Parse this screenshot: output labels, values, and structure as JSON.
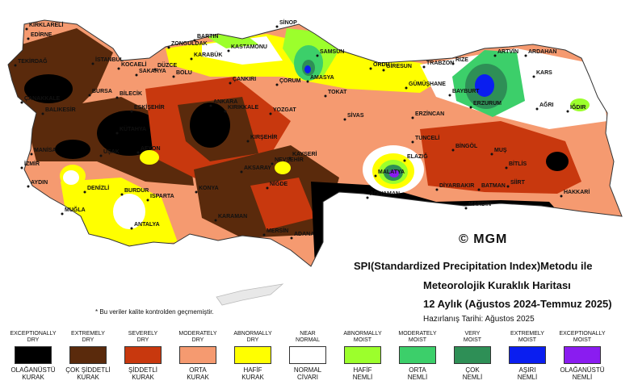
{
  "title": {
    "line1": "SPI(Standardized Precipitation Index)Metodu ile",
    "line2": "Meteorolojik Kuraklık Haritası",
    "line3": "12 Aylık (Ağustos 2024-Temmuz 2025)"
  },
  "prepared_date": "Hazırlanış Tarihi: Ağustos 2025",
  "copyright": "© MGM",
  "quality_note": "* Bu veriler kalite kontrolden geçmemiştir.",
  "legend": [
    {
      "en1": "EXCEPTIONALLY",
      "en2": "DRY",
      "tr1": "OLAĞANÜSTÜ",
      "tr2": "KURAK",
      "color": "#000000"
    },
    {
      "en1": "EXTREMELY",
      "en2": "DRY",
      "tr1": "ÇOK ŞİDDETLİ",
      "tr2": "KURAK",
      "color": "#5a2a0c"
    },
    {
      "en1": "SEVERELY",
      "en2": "DRY",
      "tr1": "ŞİDDETLİ",
      "tr2": "KURAK",
      "color": "#c8380e"
    },
    {
      "en1": "MODERATELY",
      "en2": "DRY",
      "tr1": "ORTA",
      "tr2": "KURAK",
      "color": "#f59a70"
    },
    {
      "en1": "ABNORMALLY",
      "en2": "DRY",
      "tr1": "HAFİF",
      "tr2": "KURAK",
      "color": "#ffff00"
    },
    {
      "en1": "NEAR",
      "en2": "NORMAL",
      "tr1": "NORMAL",
      "tr2": "CİVARI",
      "color": "#ffffff"
    },
    {
      "en1": "ABNORMALLY",
      "en2": "MOIST",
      "tr1": "HAFİF",
      "tr2": "NEMLİ",
      "color": "#9cff2c"
    },
    {
      "en1": "MODERATELY",
      "en2": "MOIST",
      "tr1": "ORTA",
      "tr2": "NEMLİ",
      "color": "#3ccf6a"
    },
    {
      "en1": "VERY",
      "en2": "MOIST",
      "tr1": "ÇOK",
      "tr2": "NEMLİ",
      "color": "#2e8f56"
    },
    {
      "en1": "EXTREMELY",
      "en2": "MOIST",
      "tr1": "AŞIRI",
      "tr2": "NEMLİ",
      "color": "#0a1ef0"
    },
    {
      "en1": "EXCEPTIONALLY",
      "en2": "MOIST",
      "tr1": "OLAĞANÜSTÜ",
      "tr2": "NEMLİ",
      "color": "#8a1cf0"
    }
  ],
  "cities": [
    "KIRKLARELİ",
    "EDİRNE",
    "TEKİRDAĞ",
    "İSTANBUL",
    "KOCAELİ",
    "SAKARYA",
    "DÜZCE",
    "BOLU",
    "ZONGULDAK",
    "BARTIN",
    "KARABÜK",
    "KASTAMONU",
    "SİNOP",
    "SAMSUN",
    "AMASYA",
    "ORDU",
    "GİRESUN",
    "TRABZON",
    "RİZE",
    "ARTVİN",
    "ARDAHAN",
    "KARS",
    "IĞDIR",
    "AĞRI",
    "ERZURUM",
    "BAYBURT",
    "GÜMÜŞHANE",
    "ERZİNCAN",
    "TOKAT",
    "SİVAS",
    "YOZGAT",
    "ÇORUM",
    "ÇANKIRI",
    "KIRIKKALE",
    "ANKARA",
    "KIRŞEHİR",
    "NEVŞEHİR",
    "KAYSERİ",
    "AKSARAY",
    "NİĞDE",
    "KONYA",
    "KARAMAN",
    "MERSİN",
    "ADANA",
    "BURSA",
    "BİLECİK",
    "ESKİŞEHİR",
    "BALIKESİR",
    "ÇANAKKALE",
    "KÜTAHYA",
    "UŞAK",
    "AFYON",
    "MANİSA",
    "İZMİR",
    "AYDIN",
    "DENİZLİ",
    "MUĞLA",
    "BURDUR",
    "ISPARTA",
    "ANTALYA",
    "TUNCELİ",
    "BİNGÖL",
    "ELAZIĞ",
    "MALATYA",
    "ADIYAMAN",
    "DİYARBAKIR",
    "BATMAN",
    "SİİRT",
    "BİTLİS",
    "MUŞ",
    "HAKKARİ",
    "MARDİN"
  ]
}
